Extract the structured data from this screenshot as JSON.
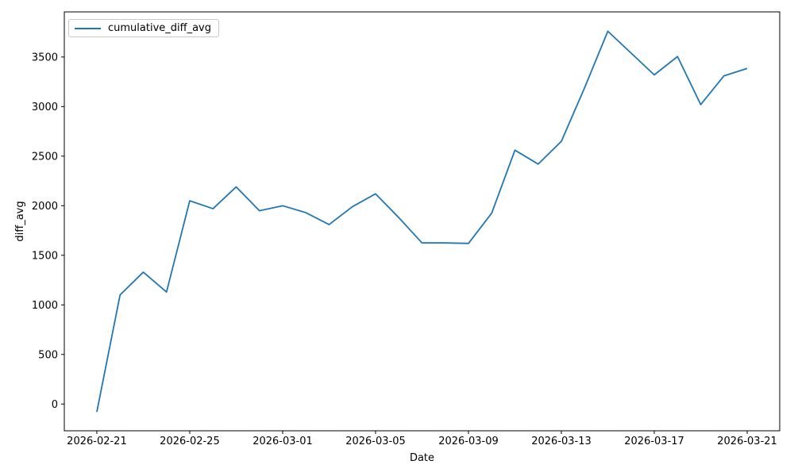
{
  "figure": {
    "background": "#ffffff",
    "text_color": "#000000",
    "spine_color": "#000000"
  },
  "chart_data": {
    "type": "line",
    "title": "",
    "xlabel": "Date",
    "ylabel": "diff_avg",
    "grid": false,
    "legend_position": "upper left",
    "series": [
      {
        "name": "cumulative_diff_avg",
        "color": "#1f77b4",
        "x": [
          "2026-02-21",
          "2026-02-22",
          "2026-02-23",
          "2026-02-24",
          "2026-02-25",
          "2026-02-26",
          "2026-02-27",
          "2026-02-28",
          "2026-03-01",
          "2026-03-02",
          "2026-03-03",
          "2026-03-04",
          "2026-03-05",
          "2026-03-06",
          "2026-03-07",
          "2026-03-08",
          "2026-03-09",
          "2026-03-10",
          "2026-03-11",
          "2026-03-12",
          "2026-03-13",
          "2026-03-14",
          "2026-03-15",
          "2026-03-16",
          "2026-03-17",
          "2026-03-18",
          "2026-03-19",
          "2026-03-20",
          "2026-03-21"
        ],
        "values": [
          -80,
          1100,
          1330,
          1130,
          2050,
          1970,
          2190,
          1950,
          2000,
          1930,
          1810,
          1990,
          2120,
          1880,
          1625,
          1625,
          1620,
          1925,
          2560,
          2420,
          2650,
          3190,
          3760,
          3540,
          3320,
          3505,
          3020,
          3310,
          3385
        ]
      }
    ],
    "x_tick_indices": [
      0,
      4,
      8,
      12,
      16,
      20,
      24,
      28
    ],
    "x_tick_labels": [
      "2026-02-21",
      "2026-02-25",
      "2026-03-01",
      "2026-03-05",
      "2026-03-09",
      "2026-03-13",
      "2026-03-17",
      "2026-03-21"
    ],
    "y_ticks": [
      0,
      500,
      1000,
      1500,
      2000,
      2500,
      3000,
      3500
    ],
    "y_tick_labels": [
      "0",
      "500",
      "1000",
      "1500",
      "2000",
      "2500",
      "3000",
      "3500"
    ],
    "xlim_index": [
      -1.4,
      29.4
    ],
    "ylim": [
      -270,
      3955
    ]
  }
}
